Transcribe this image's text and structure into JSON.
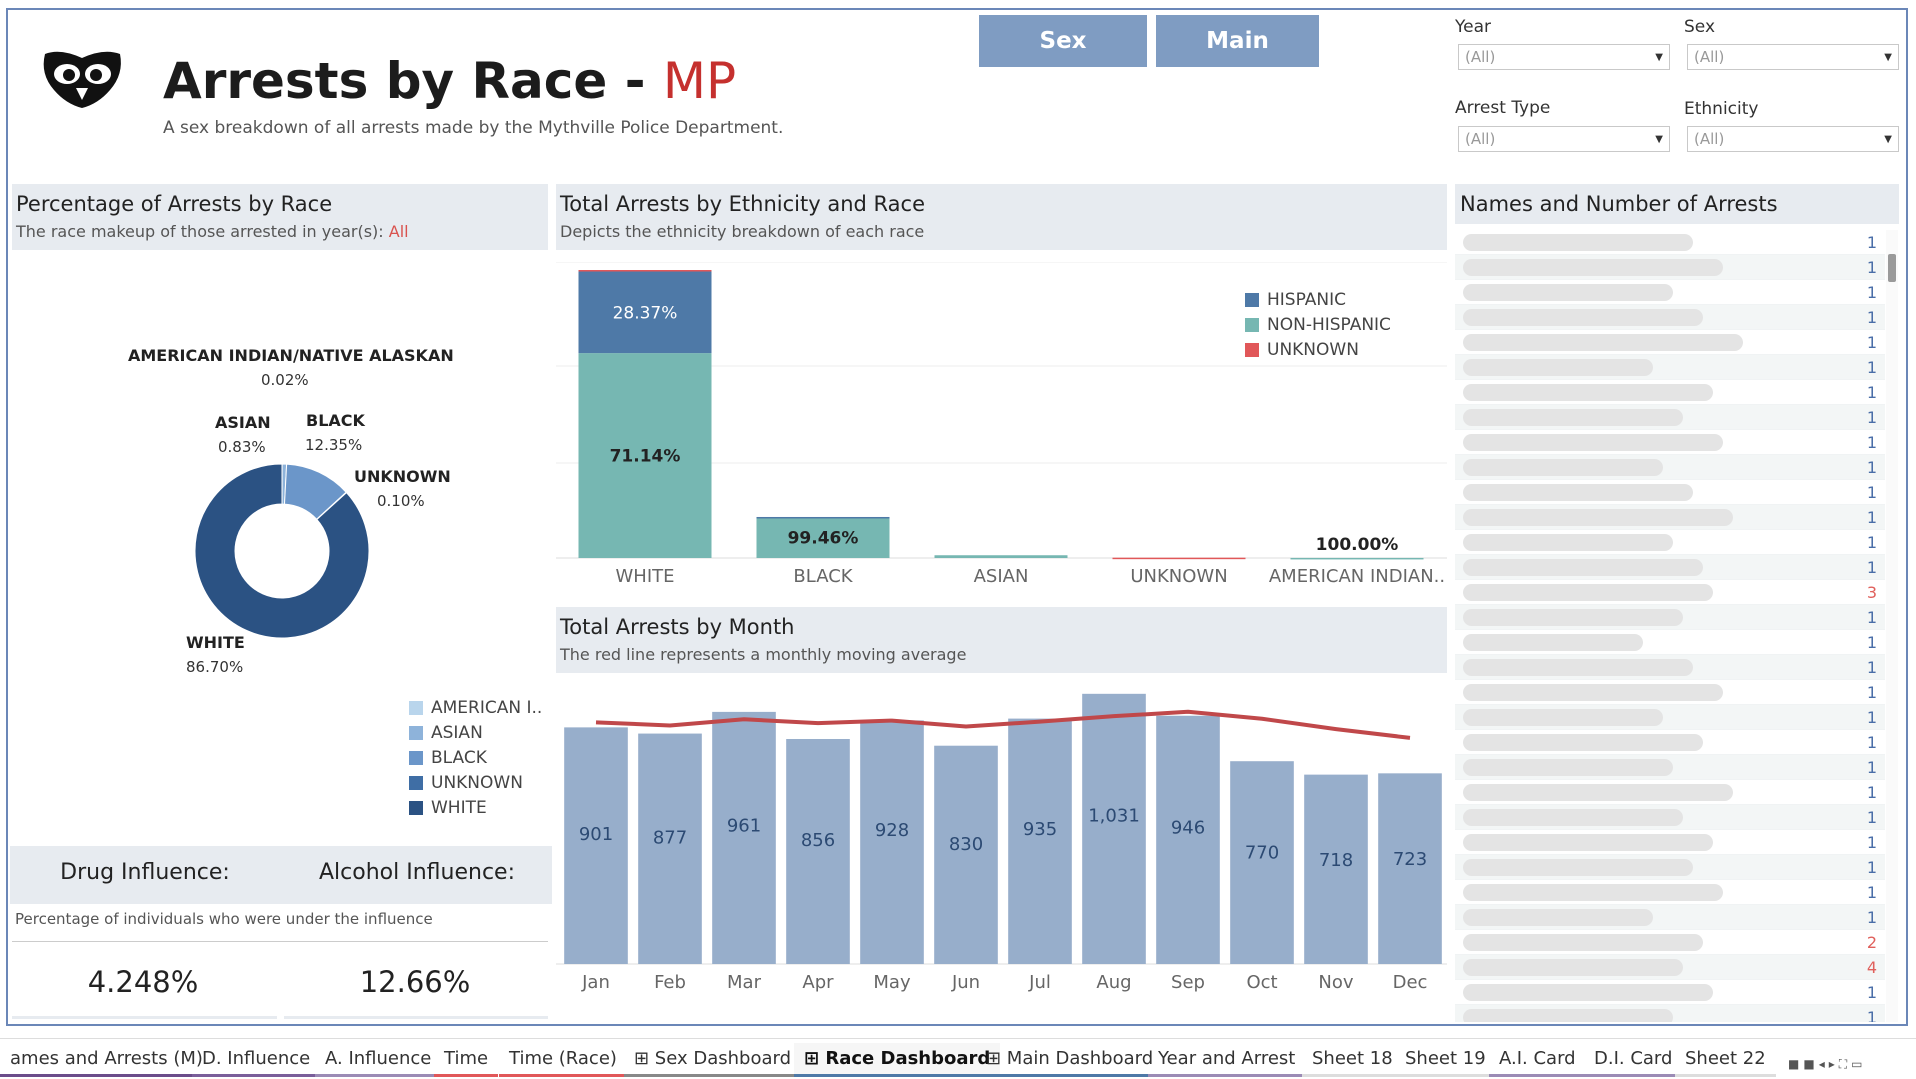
{
  "header": {
    "title_main": "Arrests by Race - ",
    "title_accent": "MP",
    "subtitle": "A sex breakdown of all arrests made by the Mythville Police Department.",
    "logo_icon": "owl-logo-icon"
  },
  "nav": {
    "sex_label": "Sex",
    "main_label": "Main"
  },
  "filters": [
    {
      "label": "Year",
      "value": "(All)"
    },
    {
      "label": "Sex",
      "value": "(All)"
    },
    {
      "label": "Arrest Type",
      "value": "(All)"
    },
    {
      "label": "Ethnicity",
      "value": "(All)"
    }
  ],
  "race_panel": {
    "title": "Percentage of Arrests by Race",
    "subtitle": "The race makeup of those arrested in year(s): ",
    "subtitle_value": "All",
    "labels": [
      {
        "name": "AMERICAN INDIAN/NATIVE ALASKAN",
        "pct": "0.02%"
      },
      {
        "name": "ASIAN",
        "pct": "0.83%"
      },
      {
        "name": "BLACK",
        "pct": "12.35%"
      },
      {
        "name": "UNKNOWN",
        "pct": "0.10%"
      },
      {
        "name": "WHITE",
        "pct": "86.70%"
      }
    ],
    "legend": [
      {
        "name": "AMERICAN I..",
        "color": "#b9d5ec"
      },
      {
        "name": "ASIAN",
        "color": "#8eb3da"
      },
      {
        "name": "BLACK",
        "color": "#6b96c9"
      },
      {
        "name": "UNKNOWN",
        "color": "#3f6ea5"
      },
      {
        "name": "WHITE",
        "color": "#2b5283"
      }
    ]
  },
  "influence": {
    "drug_label": "Drug Influence:",
    "alcohol_label": "Alcohol Influence:",
    "note": "Percentage of individuals who were under the influence",
    "drug_value": "4.248%",
    "alcohol_value": "12.66%"
  },
  "ethnicity_panel": {
    "title": "Total Arrests by Ethnicity and Race",
    "subtitle": "Depicts the ethnicity breakdown of each race",
    "legend": [
      {
        "name": "HISPANIC",
        "color": "#4e79a7"
      },
      {
        "name": "NON-HISPANIC",
        "color": "#76b7b2"
      },
      {
        "name": "UNKNOWN",
        "color": "#e15759"
      }
    ]
  },
  "month_panel": {
    "title": "Total Arrests by Month",
    "subtitle": "The red line represents a monthly moving average"
  },
  "names_panel": {
    "title": "Names and Number of Arrests",
    "counts": [
      "1",
      "1",
      "1",
      "1",
      "1",
      "1",
      "1",
      "1",
      "1",
      "1",
      "1",
      "1",
      "1",
      "1",
      "3",
      "1",
      "1",
      "1",
      "1",
      "1",
      "1",
      "1",
      "1",
      "1",
      "1",
      "1",
      "1",
      "1",
      "2",
      "4",
      "1",
      "1"
    ]
  },
  "tabs": [
    {
      "label": "ames and Arrests (M)",
      "active": false
    },
    {
      "label": "D. Influence",
      "active": false
    },
    {
      "label": "A. Influence",
      "active": false
    },
    {
      "label": "Time",
      "active": false
    },
    {
      "label": "Time (Race)",
      "active": false
    },
    {
      "label": "⊞ Sex Dashboard",
      "active": false
    },
    {
      "label": "⊞ Race Dashboard",
      "active": true
    },
    {
      "label": "⊞ Main Dashboard",
      "active": false
    },
    {
      "label": "Year and Arrest",
      "active": false
    },
    {
      "label": "Sheet 18",
      "active": false
    },
    {
      "label": "Sheet 19",
      "active": false
    },
    {
      "label": "A.I. Card",
      "active": false
    },
    {
      "label": "D.I. Card",
      "active": false
    },
    {
      "label": "Sheet 22",
      "active": false
    }
  ],
  "chart_data": [
    {
      "type": "pie",
      "title": "Percentage of Arrests by Race",
      "categories": [
        "AMERICAN INDIAN/NATIVE ALASKAN",
        "ASIAN",
        "BLACK",
        "UNKNOWN",
        "WHITE"
      ],
      "values": [
        0.02,
        0.83,
        12.35,
        0.1,
        86.7
      ],
      "colors": [
        "#b9d5ec",
        "#8eb3da",
        "#6b96c9",
        "#3f6ea5",
        "#2b5283"
      ],
      "legend": "bottom-right"
    },
    {
      "type": "bar",
      "title": "Total Arrests by Ethnicity and Race",
      "categories": [
        "WHITE",
        "BLACK",
        "ASIAN",
        "UNKNOWN",
        "AMERICAN INDIAN.."
      ],
      "series": [
        {
          "name": "HISPANIC",
          "values": [
            28.37,
            0.54,
            0,
            0,
            0
          ]
        },
        {
          "name": "NON-HISPANIC",
          "values": [
            71.14,
            99.46,
            100,
            0,
            100
          ]
        },
        {
          "name": "UNKNOWN",
          "values": [
            0.49,
            0,
            0,
            100,
            0
          ]
        }
      ],
      "data_labels": {
        "WHITE": [
          "28.37%",
          "71.14%"
        ],
        "BLACK": [
          "99.46%"
        ],
        "AMERICAN INDIAN..": [
          "100.00%"
        ]
      },
      "relative_totals": [
        86.7,
        12.35,
        0.83,
        0.1,
        0.02
      ],
      "legend": "top-right"
    },
    {
      "type": "bar",
      "title": "Total Arrests by Month",
      "categories": [
        "Jan",
        "Feb",
        "Mar",
        "Apr",
        "May",
        "Jun",
        "Jul",
        "Aug",
        "Sep",
        "Oct",
        "Nov",
        "Dec"
      ],
      "values": [
        901,
        877,
        961,
        856,
        928,
        830,
        935,
        1031,
        946,
        770,
        718,
        723
      ],
      "value_labels": [
        "901",
        "877",
        "961",
        "856",
        "928",
        "830",
        "935",
        "1,031",
        "946",
        "770",
        "718",
        "723"
      ],
      "moving_average": [
        901,
        889,
        913,
        898,
        908,
        885,
        904,
        925,
        942,
        915,
        875,
        841
      ],
      "ylim": [
        0,
        1100
      ]
    }
  ]
}
